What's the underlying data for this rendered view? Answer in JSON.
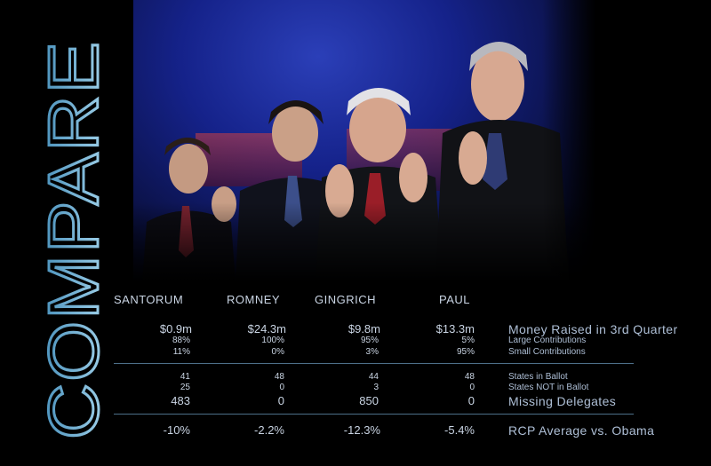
{
  "side_title": "COMPARE",
  "candidates": [
    {
      "name": "SANTORUM",
      "money": "$0.9m",
      "large_pct": "88%",
      "small_pct": "11%",
      "states_in": "41",
      "states_not": "25",
      "missing_delegates": "483",
      "rcp_vs_obama": "-10%"
    },
    {
      "name": "ROMNEY",
      "money": "$24.3m",
      "large_pct": "100%",
      "small_pct": "0%",
      "states_in": "48",
      "states_not": "0",
      "missing_delegates": "0",
      "rcp_vs_obama": "-2.2%"
    },
    {
      "name": "GINGRICH",
      "money": "$9.8m",
      "large_pct": "95%",
      "small_pct": "3%",
      "states_in": "44",
      "states_not": "3",
      "missing_delegates": "850",
      "rcp_vs_obama": "-12.3%"
    },
    {
      "name": "PAUL",
      "money": "$13.3m",
      "large_pct": "5%",
      "small_pct": "95%",
      "states_in": "48",
      "states_not": "0",
      "missing_delegates": "0",
      "rcp_vs_obama": "-5.4%"
    }
  ],
  "labels": {
    "money": "Money Raised in 3rd Quarter",
    "large": "Large Contributions",
    "small": "Small Contributions",
    "states_in": "States in Ballot",
    "states_not": "States NOT in Ballot",
    "missing": "Missing Delegates",
    "rcp": "RCP Average vs. Obama"
  },
  "colors": {
    "background": "#000000",
    "text": "#c9d4e3",
    "rule": "#4d6f89",
    "title_gradient_top": "#a9d8ef",
    "title_gradient_bottom": "#3f89b6"
  }
}
